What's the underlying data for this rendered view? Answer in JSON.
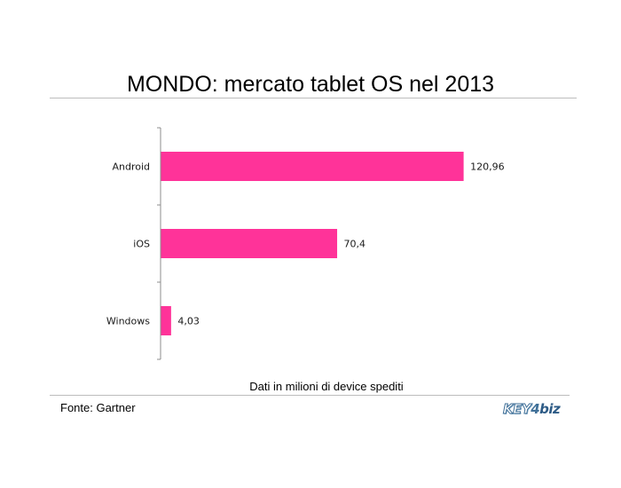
{
  "chart_data": {
    "type": "bar",
    "orientation": "horizontal",
    "title": "MONDO: mercato tablet OS nel 2013",
    "categories": [
      "Android",
      "iOS",
      "Windows"
    ],
    "values": [
      120.96,
      70.4,
      4.03
    ],
    "value_labels": [
      "120,96",
      "70,4",
      "4,03"
    ],
    "xlabel": "Dati in milioni di device spediti",
    "ylabel": "",
    "xlim": [
      0,
      140
    ],
    "grid": false,
    "legend": "none",
    "bar_color": "#ff3399"
  },
  "source_text": "Fonte: Gartner",
  "logo": {
    "text_key": "KEY",
    "text_digit": "4",
    "text_biz": "biz",
    "color": "#3f6f97"
  }
}
